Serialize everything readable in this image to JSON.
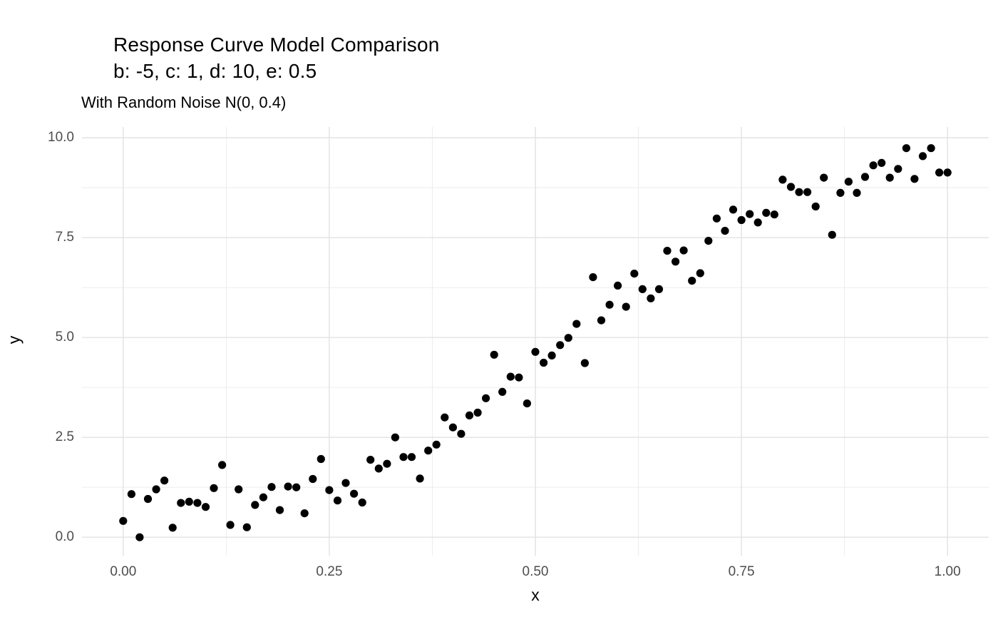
{
  "chart_data": {
    "type": "scatter",
    "title": "Response Curve Model Comparison",
    "title_line2": "b: -5, c: 1, d: 10, e: 0.5",
    "subtitle": "With Random Noise N(0, 0.4)",
    "xlabel": "x",
    "ylabel": "y",
    "xlim": [
      -0.05,
      1.05
    ],
    "ylim": [
      -0.46,
      10.27
    ],
    "x_ticks": [
      0,
      0.25,
      0.5,
      0.75,
      1
    ],
    "x_tick_labels": [
      "0.00",
      "0.25",
      "0.50",
      "0.75",
      "1.00"
    ],
    "x_minor_ticks": [
      0.125,
      0.375,
      0.625,
      0.875
    ],
    "y_ticks": [
      0,
      2.5,
      5,
      7.5,
      10
    ],
    "y_tick_labels": [
      "0.0",
      "2.5",
      "5.0",
      "7.5",
      "10.0"
    ],
    "y_minor_ticks": [
      1.25,
      3.75,
      6.25,
      8.75
    ],
    "grid": true,
    "legend_position": "none",
    "point_radius_px": 5.6,
    "colors": {
      "point": "#000000",
      "grid_major": "#E2E2E2",
      "grid_minor": "#EBEBEB",
      "tick_text": "#4D4D4D",
      "title_text": "#000000",
      "background": "#FFFFFF"
    },
    "points": [
      [
        0.0,
        0.41
      ],
      [
        0.01,
        1.08
      ],
      [
        0.02,
        0.0
      ],
      [
        0.03,
        0.96
      ],
      [
        0.04,
        1.2
      ],
      [
        0.05,
        1.42
      ],
      [
        0.06,
        0.24
      ],
      [
        0.07,
        0.86
      ],
      [
        0.08,
        0.89
      ],
      [
        0.09,
        0.86
      ],
      [
        0.1,
        0.76
      ],
      [
        0.11,
        1.23
      ],
      [
        0.12,
        1.81
      ],
      [
        0.13,
        0.31
      ],
      [
        0.14,
        1.2
      ],
      [
        0.15,
        0.25
      ],
      [
        0.16,
        0.81
      ],
      [
        0.17,
        1.0
      ],
      [
        0.18,
        1.26
      ],
      [
        0.19,
        0.68
      ],
      [
        0.2,
        1.27
      ],
      [
        0.21,
        1.25
      ],
      [
        0.22,
        0.6
      ],
      [
        0.23,
        1.46
      ],
      [
        0.24,
        1.96
      ],
      [
        0.25,
        1.18
      ],
      [
        0.26,
        0.92
      ],
      [
        0.27,
        1.36
      ],
      [
        0.28,
        1.09
      ],
      [
        0.29,
        0.87
      ],
      [
        0.3,
        1.94
      ],
      [
        0.31,
        1.72
      ],
      [
        0.32,
        1.84
      ],
      [
        0.33,
        2.5
      ],
      [
        0.34,
        2.01
      ],
      [
        0.35,
        2.01
      ],
      [
        0.36,
        1.47
      ],
      [
        0.37,
        2.17
      ],
      [
        0.38,
        2.32
      ],
      [
        0.39,
        3.0
      ],
      [
        0.4,
        2.75
      ],
      [
        0.41,
        2.59
      ],
      [
        0.42,
        3.05
      ],
      [
        0.43,
        3.12
      ],
      [
        0.44,
        3.48
      ],
      [
        0.45,
        4.57
      ],
      [
        0.46,
        3.64
      ],
      [
        0.47,
        4.02
      ],
      [
        0.48,
        4.0
      ],
      [
        0.49,
        3.35
      ],
      [
        0.5,
        4.64
      ],
      [
        0.51,
        4.37
      ],
      [
        0.52,
        4.55
      ],
      [
        0.53,
        4.81
      ],
      [
        0.54,
        4.99
      ],
      [
        0.55,
        5.34
      ],
      [
        0.56,
        4.36
      ],
      [
        0.57,
        6.51
      ],
      [
        0.58,
        5.43
      ],
      [
        0.59,
        5.82
      ],
      [
        0.6,
        6.3
      ],
      [
        0.61,
        5.77
      ],
      [
        0.62,
        6.6
      ],
      [
        0.63,
        6.21
      ],
      [
        0.64,
        5.98
      ],
      [
        0.65,
        6.21
      ],
      [
        0.66,
        7.17
      ],
      [
        0.67,
        6.9
      ],
      [
        0.68,
        7.18
      ],
      [
        0.69,
        6.42
      ],
      [
        0.7,
        6.61
      ],
      [
        0.71,
        7.42
      ],
      [
        0.72,
        7.98
      ],
      [
        0.73,
        7.67
      ],
      [
        0.74,
        8.2
      ],
      [
        0.75,
        7.94
      ],
      [
        0.76,
        8.09
      ],
      [
        0.77,
        7.88
      ],
      [
        0.78,
        8.12
      ],
      [
        0.79,
        8.08
      ],
      [
        0.8,
        8.95
      ],
      [
        0.81,
        8.77
      ],
      [
        0.82,
        8.64
      ],
      [
        0.83,
        8.64
      ],
      [
        0.84,
        8.28
      ],
      [
        0.85,
        9.0
      ],
      [
        0.86,
        7.57
      ],
      [
        0.87,
        8.62
      ],
      [
        0.88,
        8.9
      ],
      [
        0.89,
        8.62
      ],
      [
        0.9,
        9.02
      ],
      [
        0.91,
        9.31
      ],
      [
        0.92,
        9.37
      ],
      [
        0.93,
        9.0
      ],
      [
        0.94,
        9.22
      ],
      [
        0.95,
        9.74
      ],
      [
        0.96,
        8.97
      ],
      [
        0.97,
        9.54
      ],
      [
        0.98,
        9.74
      ],
      [
        0.99,
        9.13
      ],
      [
        1.0,
        9.13
      ]
    ]
  }
}
